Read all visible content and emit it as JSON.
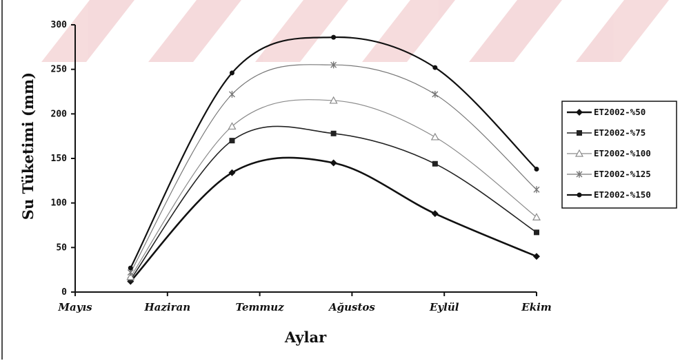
{
  "colors": {
    "axis": "#111111",
    "watermark": "#c8232c"
  },
  "chart_data": {
    "type": "line",
    "title": "",
    "xlabel": "Aylar",
    "ylabel": "Su Tüketimi (mm)",
    "x_categories": [
      "Mayıs",
      "Haziran",
      "Temmuz",
      "Ağustos",
      "Eylül",
      "Ekim"
    ],
    "x_range": [
      0,
      5
    ],
    "ylim": [
      0,
      300
    ],
    "yticks": [
      0,
      50,
      100,
      150,
      200,
      250,
      300
    ],
    "ytick_labels": [
      "0",
      "50",
      "100",
      "150",
      "200",
      "250",
      "300"
    ],
    "grid": false,
    "legend_position": "right",
    "x_points": [
      0.6,
      1.7,
      2.8,
      3.9,
      5.0
    ],
    "series": [
      {
        "name": "ET2002-%50",
        "marker": "diamond",
        "color": "#111111",
        "values": [
          12,
          134,
          145,
          88,
          40
        ]
      },
      {
        "name": "ET2002-%75",
        "marker": "square",
        "color": "#222222",
        "values": [
          14,
          170,
          178,
          144,
          67
        ]
      },
      {
        "name": "ET2002-%100",
        "marker": "triangle",
        "color": "#8a8a8a",
        "values": [
          17,
          186,
          215,
          174,
          84
        ]
      },
      {
        "name": "ET2002-%125",
        "marker": "star",
        "color": "#777777",
        "values": [
          22,
          222,
          255,
          222,
          115
        ]
      },
      {
        "name": "ET2002-%150",
        "marker": "circle",
        "color": "#111111",
        "values": [
          27,
          246,
          286,
          252,
          138
        ]
      }
    ]
  }
}
